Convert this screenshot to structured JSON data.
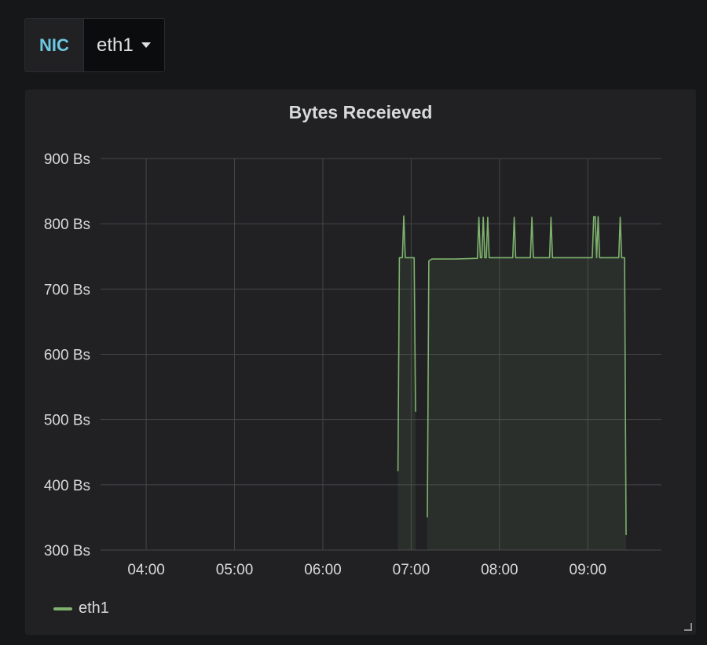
{
  "variable": {
    "label": "NIC",
    "value": "eth1"
  },
  "panel": {
    "title": "Bytes Receieved"
  },
  "legend": [
    {
      "name": "eth1",
      "color": "#7eb26d"
    }
  ],
  "chart_data": {
    "type": "area",
    "title": "Bytes Receieved",
    "xlabel": "",
    "ylabel": "",
    "y_ticks": [
      "300 Bs",
      "400 Bs",
      "500 Bs",
      "600 Bs",
      "700 Bs",
      "800 Bs",
      "900 Bs"
    ],
    "x_ticks": [
      "04:00",
      "05:00",
      "06:00",
      "07:00",
      "08:00",
      "09:00"
    ],
    "ylim": [
      300,
      900
    ],
    "xlim": [
      "03:29",
      "09:50"
    ],
    "grid": true,
    "legend_position": "bottom-left",
    "series": [
      {
        "name": "eth1",
        "color": "#7eb26d",
        "segments": [
          [
            [
              "06:51",
              421
            ],
            [
              "06:52",
              748
            ],
            [
              "06:54",
              748
            ],
            [
              "06:55",
              812
            ],
            [
              "06:56",
              748
            ],
            [
              "07:02",
              748
            ],
            [
              "07:03",
              512
            ]
          ],
          [
            [
              "07:11",
              350
            ],
            [
              "07:12",
              743
            ],
            [
              "07:14",
              746
            ],
            [
              "07:30",
              746
            ],
            [
              "07:45",
              747
            ],
            [
              "07:46",
              810
            ],
            [
              "07:47",
              748
            ],
            [
              "07:48",
              748
            ],
            [
              "07:49",
              810
            ],
            [
              "07:50",
              748
            ],
            [
              "07:51",
              748
            ],
            [
              "07:52",
              810
            ],
            [
              "07:53",
              748
            ],
            [
              "08:09",
              748
            ],
            [
              "08:10",
              810
            ],
            [
              "08:11",
              748
            ],
            [
              "08:21",
              748
            ],
            [
              "08:22",
              810
            ],
            [
              "08:23",
              748
            ],
            [
              "08:34",
              748
            ],
            [
              "08:35",
              810
            ],
            [
              "08:36",
              748
            ],
            [
              "09:03",
              748
            ],
            [
              "09:04",
              811
            ],
            [
              "09:05",
              811
            ],
            [
              "09:06",
              748
            ],
            [
              "09:07",
              811
            ],
            [
              "09:08",
              748
            ],
            [
              "09:21",
              748
            ],
            [
              "09:22",
              810
            ],
            [
              "09:23",
              748
            ],
            [
              "09:25",
              748
            ],
            [
              "09:26",
              323
            ]
          ]
        ]
      }
    ]
  }
}
